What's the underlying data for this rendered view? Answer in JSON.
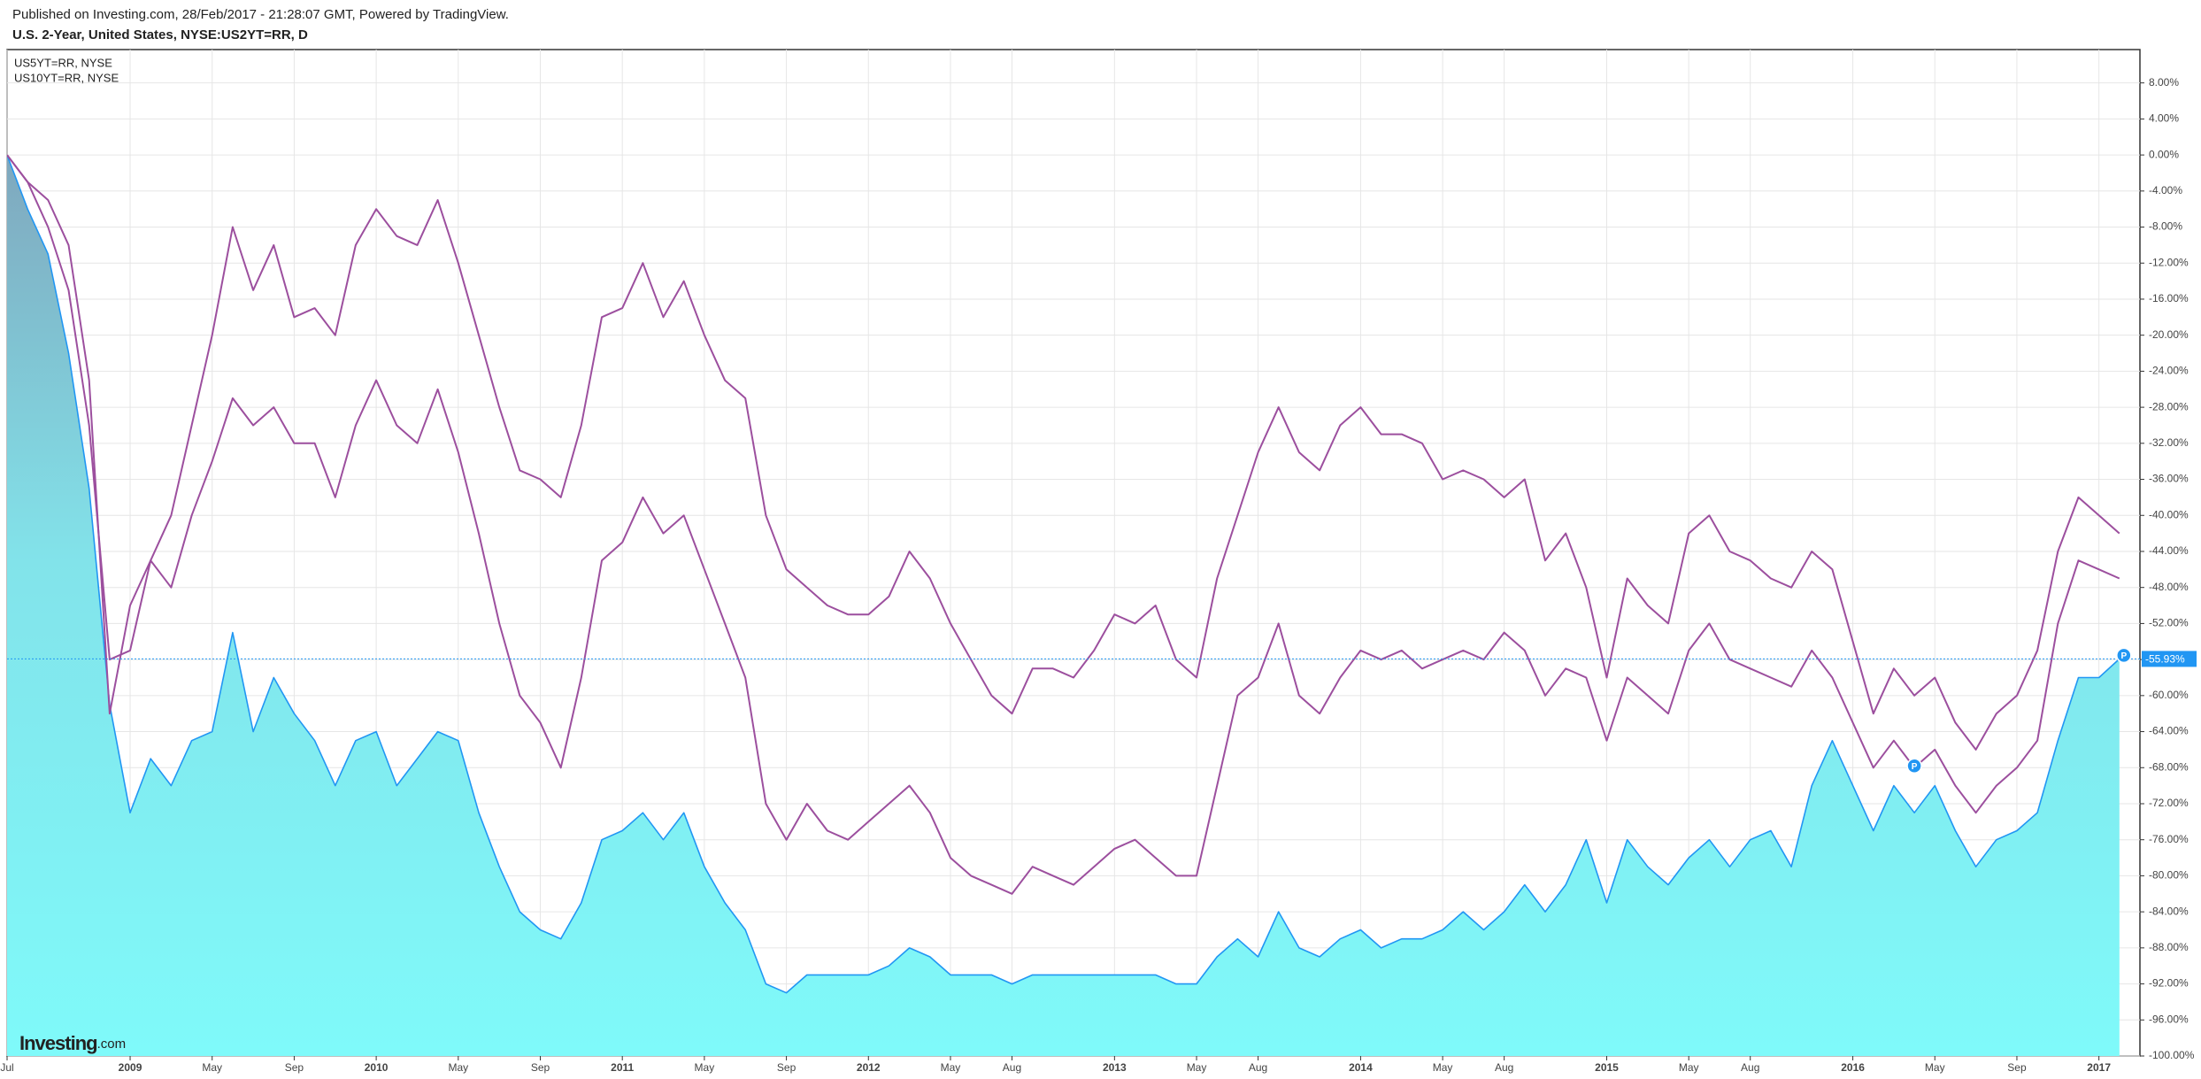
{
  "header": {
    "published": "Published on Investing.com, 28/Feb/2017 - 21:28:07 GMT, Powered by TradingView."
  },
  "logo": {
    "name": "Investing",
    "suffix": ".com"
  },
  "pin_label": "P",
  "chart_data": {
    "type": "area-line",
    "title": "U.S. 2-Year, United States, NYSE:US2YT=RR, D",
    "x": [
      "2008-07",
      "2008-08",
      "2008-09",
      "2008-10",
      "2008-11",
      "2008-12",
      "2009-01",
      "2009-02",
      "2009-03",
      "2009-04",
      "2009-05",
      "2009-06",
      "2009-07",
      "2009-08",
      "2009-09",
      "2009-10",
      "2009-11",
      "2009-12",
      "2010-01",
      "2010-02",
      "2010-03",
      "2010-04",
      "2010-05",
      "2010-06",
      "2010-07",
      "2010-08",
      "2010-09",
      "2010-10",
      "2010-11",
      "2010-12",
      "2011-01",
      "2011-02",
      "2011-03",
      "2011-04",
      "2011-05",
      "2011-06",
      "2011-07",
      "2011-08",
      "2011-09",
      "2011-10",
      "2011-11",
      "2011-12",
      "2012-01",
      "2012-02",
      "2012-03",
      "2012-04",
      "2012-05",
      "2012-06",
      "2012-07",
      "2012-08",
      "2012-09",
      "2012-10",
      "2012-11",
      "2012-12",
      "2013-01",
      "2013-02",
      "2013-03",
      "2013-04",
      "2013-05",
      "2013-06",
      "2013-07",
      "2013-08",
      "2013-09",
      "2013-10",
      "2013-11",
      "2013-12",
      "2014-01",
      "2014-02",
      "2014-03",
      "2014-04",
      "2014-05",
      "2014-06",
      "2014-07",
      "2014-08",
      "2014-09",
      "2014-10",
      "2014-11",
      "2014-12",
      "2015-01",
      "2015-02",
      "2015-03",
      "2015-04",
      "2015-05",
      "2015-06",
      "2015-07",
      "2015-08",
      "2015-09",
      "2015-10",
      "2015-11",
      "2015-12",
      "2016-01",
      "2016-02",
      "2016-03",
      "2016-04",
      "2016-05",
      "2016-06",
      "2016-07",
      "2016-08",
      "2016-09",
      "2016-10",
      "2016-11",
      "2016-12",
      "2017-01",
      "2017-02"
    ],
    "series": [
      {
        "color": "#2196f3",
        "values": [
          0,
          -6,
          -11,
          -22,
          -37,
          -61,
          -73,
          -67,
          -70,
          -65,
          -64,
          -53,
          -64,
          -58,
          -62,
          -65,
          -70,
          -65,
          -64,
          -70,
          -67,
          -64,
          -65,
          -73,
          -79,
          -84,
          -86,
          -87,
          -83,
          -76,
          -75,
          -73,
          -76,
          -73,
          -79,
          -83,
          -86,
          -92,
          -93,
          -91,
          -91,
          -91,
          -91,
          -90,
          -88,
          -89,
          -91,
          -91,
          -91,
          -92,
          -91,
          -91,
          -91,
          -91,
          -91,
          -91,
          -91,
          -92,
          -92,
          -89,
          -87,
          -89,
          -84,
          -88,
          -89,
          -87,
          -86,
          -88,
          -87,
          -87,
          -86,
          -84,
          -86,
          -84,
          -81,
          -84,
          -81,
          -76,
          -83,
          -76,
          -79,
          -81,
          -78,
          -76,
          -79,
          -76,
          -75,
          -79,
          -70,
          -65,
          -70,
          -75,
          -70,
          -73,
          -70,
          -75,
          -79,
          -76,
          -75,
          -73,
          -65,
          -58,
          -58,
          -55.93
        ]
      },
      {
        "name": "US5YT=RR, NYSE",
        "color": "#9c4f9e",
        "values": [
          0,
          -3,
          -8,
          -15,
          -30,
          -56,
          -55,
          -45,
          -48,
          -40,
          -34,
          -27,
          -30,
          -28,
          -32,
          -32,
          -38,
          -30,
          -25,
          -30,
          -32,
          -26,
          -33,
          -42,
          -52,
          -60,
          -63,
          -68,
          -58,
          -45,
          -43,
          -38,
          -42,
          -40,
          -46,
          -52,
          -58,
          -72,
          -76,
          -72,
          -75,
          -76,
          -74,
          -72,
          -70,
          -73,
          -78,
          -80,
          -81,
          -82,
          -79,
          -80,
          -81,
          -79,
          -77,
          -76,
          -78,
          -80,
          -80,
          -70,
          -60,
          -58,
          -52,
          -60,
          -62,
          -58,
          -55,
          -56,
          -55,
          -57,
          -56,
          -55,
          -56,
          -53,
          -55,
          -60,
          -57,
          -58,
          -65,
          -58,
          -60,
          -62,
          -55,
          -52,
          -56,
          -57,
          -58,
          -59,
          -55,
          -58,
          -63,
          -68,
          -65,
          -68,
          -66,
          -70,
          -73,
          -70,
          -68,
          -65,
          -52,
          -45,
          -46,
          -47
        ]
      },
      {
        "name": "US10YT=RR, NYSE",
        "color": "#9c4f9e",
        "values": [
          0,
          -3,
          -5,
          -10,
          -25,
          -62,
          -50,
          -45,
          -40,
          -30,
          -20,
          -8,
          -15,
          -10,
          -18,
          -17,
          -20,
          -10,
          -6,
          -9,
          -10,
          -5,
          -12,
          -20,
          -28,
          -35,
          -36,
          -38,
          -30,
          -18,
          -17,
          -12,
          -18,
          -14,
          -20,
          -25,
          -27,
          -40,
          -46,
          -48,
          -50,
          -51,
          -51,
          -49,
          -44,
          -47,
          -52,
          -56,
          -60,
          -62,
          -57,
          -57,
          -58,
          -55,
          -51,
          -52,
          -50,
          -56,
          -58,
          -47,
          -40,
          -33,
          -28,
          -33,
          -35,
          -30,
          -28,
          -31,
          -31,
          -32,
          -36,
          -35,
          -36,
          -38,
          -36,
          -45,
          -42,
          -48,
          -58,
          -47,
          -50,
          -52,
          -42,
          -40,
          -44,
          -45,
          -47,
          -48,
          -44,
          -46,
          -54,
          -62,
          -57,
          -60,
          -58,
          -63,
          -66,
          -62,
          -60,
          -55,
          -44,
          -38,
          -40,
          -42
        ]
      }
    ],
    "current_value": {
      "value": -55.93,
      "label": "-55.93%"
    },
    "xlim": [
      "2008-07",
      "2017-03"
    ],
    "ylim": [
      -100,
      11.7
    ],
    "xticks": [
      {
        "value": "2008-07",
        "label": "Jul"
      },
      {
        "value": "2009-01",
        "label": "2009"
      },
      {
        "value": "2009-05",
        "label": "May"
      },
      {
        "value": "2009-09",
        "label": "Sep"
      },
      {
        "value": "2010-01",
        "label": "2010"
      },
      {
        "value": "2010-05",
        "label": "May"
      },
      {
        "value": "2010-09",
        "label": "Sep"
      },
      {
        "value": "2011-01",
        "label": "2011"
      },
      {
        "value": "2011-05",
        "label": "May"
      },
      {
        "value": "2011-09",
        "label": "Sep"
      },
      {
        "value": "2012-01",
        "label": "2012"
      },
      {
        "value": "2012-05",
        "label": "May"
      },
      {
        "value": "2012-08",
        "label": "Aug"
      },
      {
        "value": "2013-01",
        "label": "2013"
      },
      {
        "value": "2013-05",
        "label": "May"
      },
      {
        "value": "2013-08",
        "label": "Aug"
      },
      {
        "value": "2014-01",
        "label": "2014"
      },
      {
        "value": "2014-05",
        "label": "May"
      },
      {
        "value": "2014-08",
        "label": "Aug"
      },
      {
        "value": "2015-01",
        "label": "2015"
      },
      {
        "value": "2015-05",
        "label": "May"
      },
      {
        "value": "2015-08",
        "label": "Aug"
      },
      {
        "value": "2016-01",
        "label": "2016"
      },
      {
        "value": "2016-05",
        "label": "May"
      },
      {
        "value": "2016-09",
        "label": "Sep"
      },
      {
        "value": "2017-01",
        "label": "2017"
      }
    ],
    "yticks": [
      {
        "value": -100,
        "label": "-100.00%"
      },
      {
        "value": -96,
        "label": "-96.00%"
      },
      {
        "value": -92,
        "label": "-92.00%"
      },
      {
        "value": -88,
        "label": "-88.00%"
      },
      {
        "value": -84,
        "label": "-84.00%"
      },
      {
        "value": -80,
        "label": "-80.00%"
      },
      {
        "value": -76,
        "label": "-76.00%"
      },
      {
        "value": -72,
        "label": "-72.00%"
      },
      {
        "value": -68,
        "label": "-68.00%"
      },
      {
        "value": -64,
        "label": "-64.00%"
      },
      {
        "value": -60,
        "label": "-60.00%"
      },
      {
        "value": -56,
        "label": "-56.00%"
      },
      {
        "value": -52,
        "label": "-52.00%"
      },
      {
        "value": -48,
        "label": "-48.00%"
      },
      {
        "value": -44,
        "label": "-44.00%"
      },
      {
        "value": -40,
        "label": "-40.00%"
      },
      {
        "value": -36,
        "label": "-36.00%"
      },
      {
        "value": -32,
        "label": "-32.00%"
      },
      {
        "value": -28,
        "label": "-28.00%"
      },
      {
        "value": -24,
        "label": "-24.00%"
      },
      {
        "value": -20,
        "label": "-20.00%"
      },
      {
        "value": -16,
        "label": "-16.00%"
      },
      {
        "value": -12,
        "label": "-12.00%"
      },
      {
        "value": -8,
        "label": "-8.00%"
      },
      {
        "value": -4,
        "label": "-4.00%"
      },
      {
        "value": 0,
        "label": "0.00%"
      },
      {
        "value": 4,
        "label": "4.00%"
      },
      {
        "value": 8,
        "label": "8.00%"
      }
    ],
    "grid": true
  }
}
